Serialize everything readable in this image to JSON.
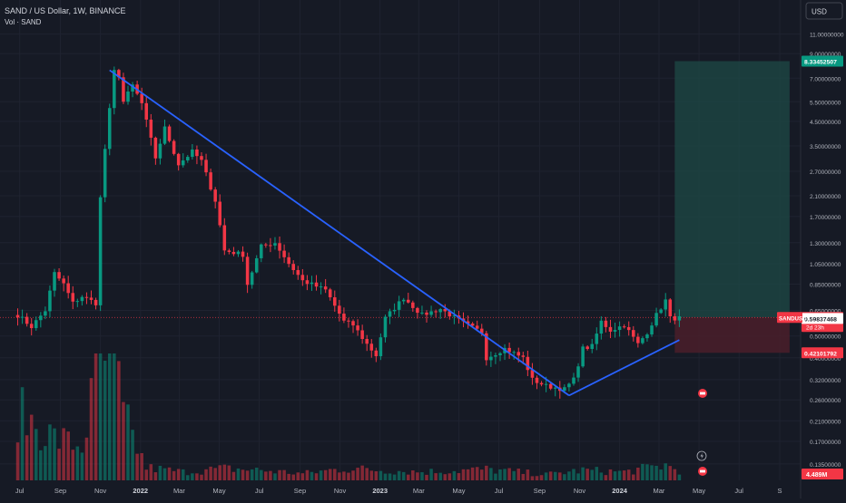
{
  "header": {
    "title": "SAND / US Dollar, 1W, BINANCE",
    "volume_label": "Vol · SAND",
    "currency_button": "USD"
  },
  "chart_data": {
    "type": "candlestick",
    "symbol": "SANDUSD",
    "interval": "1W",
    "exchange": "BINANCE",
    "y_scale": "log",
    "ylim": [
      0.104,
      11.8
    ],
    "price_ticks": [
      "11.00000000",
      "9.00000000",
      "7.00000000",
      "5.50000000",
      "4.50000000",
      "3.50000000",
      "2.70000000",
      "2.10000000",
      "1.70000000",
      "1.30000000",
      "1.05000000",
      "0.85000000",
      "0.65000000",
      "0.50000000",
      "0.40000000",
      "0.32000000",
      "0.26000000",
      "0.21000000",
      "0.17000000",
      "0.13500000"
    ],
    "x_ticks": [
      "Jul",
      "Sep",
      "Nov",
      "2022",
      "Mar",
      "May",
      "Jul",
      "Sep",
      "Nov",
      "2023",
      "Mar",
      "May",
      "Jul",
      "Sep",
      "Nov",
      "2024",
      "Mar",
      "May",
      "Jul",
      "S"
    ],
    "price_series": [
      {
        "date": "2021-06-28",
        "close": 0.62
      },
      {
        "date": "2021-07-19",
        "close": 0.55
      },
      {
        "date": "2021-08-09",
        "close": 0.65
      },
      {
        "date": "2021-08-23",
        "close": 0.95
      },
      {
        "date": "2021-09-06",
        "close": 0.85
      },
      {
        "date": "2021-09-20",
        "close": 0.7
      },
      {
        "date": "2021-10-04",
        "close": 0.75
      },
      {
        "date": "2021-10-25",
        "close": 0.7
      },
      {
        "date": "2021-11-01",
        "close": 2.05
      },
      {
        "date": "2021-11-08",
        "close": 3.4
      },
      {
        "date": "2021-11-22",
        "close": 7.5
      },
      {
        "date": "2021-11-29",
        "close": 7.2
      },
      {
        "date": "2021-12-06",
        "close": 5.5
      },
      {
        "date": "2021-12-20",
        "close": 6.5
      },
      {
        "date": "2022-01-03",
        "close": 5.4
      },
      {
        "date": "2022-01-24",
        "close": 3.1
      },
      {
        "date": "2022-02-07",
        "close": 4.2
      },
      {
        "date": "2022-02-28",
        "close": 2.9
      },
      {
        "date": "2022-03-21",
        "close": 3.3
      },
      {
        "date": "2022-04-04",
        "close": 3.0
      },
      {
        "date": "2022-04-25",
        "close": 2.0
      },
      {
        "date": "2022-05-09",
        "close": 1.2
      },
      {
        "date": "2022-06-06",
        "close": 1.15
      },
      {
        "date": "2022-06-13",
        "close": 0.85
      },
      {
        "date": "2022-07-04",
        "close": 1.25
      },
      {
        "date": "2022-07-25",
        "close": 1.3
      },
      {
        "date": "2022-08-15",
        "close": 1.05
      },
      {
        "date": "2022-09-05",
        "close": 0.88
      },
      {
        "date": "2022-10-10",
        "close": 0.8
      },
      {
        "date": "2022-11-07",
        "close": 0.58
      },
      {
        "date": "2022-11-21",
        "close": 0.56
      },
      {
        "date": "2022-12-12",
        "close": 0.46
      },
      {
        "date": "2022-12-26",
        "close": 0.41
      },
      {
        "date": "2023-01-09",
        "close": 0.6
      },
      {
        "date": "2023-02-06",
        "close": 0.74
      },
      {
        "date": "2023-03-06",
        "close": 0.62
      },
      {
        "date": "2023-04-03",
        "close": 0.66
      },
      {
        "date": "2023-05-08",
        "close": 0.57
      },
      {
        "date": "2023-06-05",
        "close": 0.52
      },
      {
        "date": "2023-06-12",
        "close": 0.4
      },
      {
        "date": "2023-07-10",
        "close": 0.44
      },
      {
        "date": "2023-08-07",
        "close": 0.4
      },
      {
        "date": "2023-08-21",
        "close": 0.32
      },
      {
        "date": "2023-09-11",
        "close": 0.3
      },
      {
        "date": "2023-10-09",
        "close": 0.29
      },
      {
        "date": "2023-10-23",
        "close": 0.32
      },
      {
        "date": "2023-11-06",
        "close": 0.44
      },
      {
        "date": "2023-11-20",
        "close": 0.45
      },
      {
        "date": "2023-12-04",
        "close": 0.58
      },
      {
        "date": "2023-12-18",
        "close": 0.53
      },
      {
        "date": "2024-01-08",
        "close": 0.56
      },
      {
        "date": "2024-01-29",
        "close": 0.46
      },
      {
        "date": "2024-02-12",
        "close": 0.52
      },
      {
        "date": "2024-02-26",
        "close": 0.62
      },
      {
        "date": "2024-03-11",
        "close": 0.72
      },
      {
        "date": "2024-03-18",
        "close": 0.6
      },
      {
        "date": "2024-04-01",
        "close": 0.6
      }
    ],
    "volume_series": [
      {
        "date": "2021-06-28",
        "value": 80
      },
      {
        "date": "2021-08-23",
        "value": 50
      },
      {
        "date": "2021-10-04",
        "value": 40
      },
      {
        "date": "2021-11-01",
        "value": 140
      },
      {
        "date": "2021-11-22",
        "value": 145
      },
      {
        "date": "2021-12-06",
        "value": 75
      },
      {
        "date": "2022-01-10",
        "value": 15
      },
      {
        "date": "2022-03-07",
        "value": 10
      },
      {
        "date": "2022-05-09",
        "value": 14
      },
      {
        "date": "2022-07-04",
        "value": 12
      },
      {
        "date": "2022-09-05",
        "value": 8
      },
      {
        "date": "2022-11-07",
        "value": 14
      },
      {
        "date": "2023-01-09",
        "value": 12
      },
      {
        "date": "2023-03-06",
        "value": 10
      },
      {
        "date": "2023-06-12",
        "value": 13
      },
      {
        "date": "2023-09-11",
        "value": 7
      },
      {
        "date": "2023-11-06",
        "value": 12
      },
      {
        "date": "2024-01-08",
        "value": 10
      },
      {
        "date": "2024-03-11",
        "value": 18
      },
      {
        "date": "2024-04-01",
        "value": 12
      }
    ],
    "trendlines": [
      {
        "name": "descending",
        "from": {
          "date": "2021-11-15",
          "price": 7.6
        },
        "to": {
          "date": "2023-10-16",
          "price": 0.272
        }
      },
      {
        "name": "ascending",
        "from": {
          "date": "2023-10-16",
          "price": 0.272
        },
        "to": {
          "date": "2024-04-01",
          "price": 0.48
        }
      }
    ],
    "position": {
      "start": "2024-03-25",
      "end": "2024-09-16",
      "target": 8.33452507,
      "entry": 0.60445236,
      "stop": 0.42101792
    },
    "badges": [
      {
        "label": "8.33452507",
        "price": 8.33452507,
        "color": "#089981"
      },
      {
        "label": "0.60445236",
        "price": 0.60445236,
        "color": "#f23645"
      },
      {
        "label": "0.59837468",
        "price": 0.59837468,
        "color": "#ffffff"
      },
      {
        "label": "0.42101792",
        "price": 0.42101792,
        "color": "#f23645"
      }
    ],
    "symbol_tag": "SANDUSD",
    "countdown": "2d 23h",
    "volume_badge": "4.489M",
    "colors": {
      "up": "#089981",
      "down": "#f23645",
      "trendline": "#2962ff",
      "background": "#161a25",
      "target_zone": "#1e4a45",
      "stop_zone": "#4a1f2a"
    }
  }
}
